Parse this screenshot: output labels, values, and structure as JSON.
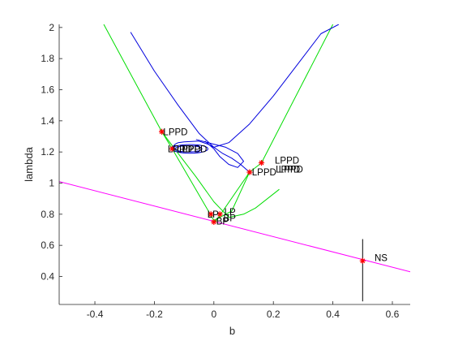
{
  "chart_data": {
    "type": "line",
    "title": "",
    "xlabel": "b",
    "ylabel": "lambda",
    "xlim": [
      -0.52,
      0.66
    ],
    "ylim": [
      0.22,
      2.02
    ],
    "xticks": [
      -0.4,
      -0.2,
      0,
      0.2,
      0.4,
      0.6
    ],
    "xtick_labels": [
      "-0.4",
      "-0.2",
      "0",
      "0.2",
      "0.4",
      "0.6"
    ],
    "yticks": [
      0.4,
      0.6,
      0.8,
      1.0,
      1.2,
      1.4,
      1.6,
      1.8,
      2.0
    ],
    "ytick_labels": [
      "0.4",
      "0.6",
      "0.8",
      "1",
      "1.2",
      "1.4",
      "1.6",
      "1.8",
      "2"
    ],
    "grid": false,
    "colors": {
      "green": "#00dd00",
      "blue": "#0000dd",
      "magenta": "#ff00ff",
      "black": "#000000",
      "marker": "#ff0000",
      "axis": "#262626"
    },
    "series": [
      {
        "color": "#ff00ff",
        "x": [
          -0.52,
          0.66
        ],
        "y": [
          1.01,
          0.43
        ]
      },
      {
        "color": "#00dd00",
        "x": [
          -0.37,
          -0.175,
          -0.14,
          0.0,
          0.005,
          0.12,
          0.16,
          0.4
        ],
        "y": [
          2.02,
          1.33,
          1.22,
          0.76,
          0.75,
          1.07,
          1.13,
          2.02
        ]
      },
      {
        "color": "#00dd00",
        "x": [
          -0.175,
          -0.12,
          -0.06,
          0.0,
          0.05,
          0.1,
          0.14,
          0.22
        ],
        "y": [
          1.33,
          1.19,
          1.04,
          0.88,
          0.78,
          0.8,
          0.84,
          0.96
        ]
      },
      {
        "color": "#00dd00",
        "x": [
          0.0,
          0.06,
          0.12
        ],
        "y": [
          0.76,
          0.82,
          1.07
        ]
      },
      {
        "color": "#0000dd",
        "x": [
          -0.28,
          -0.2,
          -0.12,
          -0.05,
          0.0,
          0.03,
          0.06,
          0.09,
          0.12
        ],
        "y": [
          1.97,
          1.72,
          1.5,
          1.32,
          1.23,
          1.19,
          1.16,
          1.12,
          1.07
        ]
      },
      {
        "color": "#0000dd",
        "x": [
          -0.145,
          -0.13,
          -0.12,
          -0.1,
          -0.05,
          -0.02,
          0.0,
          0.05,
          0.12,
          0.2,
          0.28,
          0.36,
          0.42
        ],
        "y": [
          1.22,
          1.25,
          1.26,
          1.265,
          1.27,
          1.25,
          1.23,
          1.26,
          1.38,
          1.56,
          1.76,
          1.96,
          2.02
        ]
      },
      {
        "color": "#0000dd",
        "x": [
          -0.06,
          0.0,
          0.04,
          0.08,
          0.1,
          0.08,
          0.05,
          0.02,
          0.0,
          -0.03
        ],
        "y": [
          1.28,
          1.25,
          1.23,
          1.19,
          1.14,
          1.1,
          1.12,
          1.17,
          1.22,
          1.27
        ]
      },
      {
        "color": "#000000",
        "x": [
          0.5,
          0.5
        ],
        "y": [
          0.24,
          0.64
        ]
      }
    ],
    "loops": [
      {
        "cx": -0.08,
        "cy": 1.22,
        "rx": 0.06,
        "ry": 0.028,
        "color": "#0000dd"
      },
      {
        "cx": -0.085,
        "cy": 1.22,
        "rx": 0.045,
        "ry": 0.02,
        "color": "#0000dd"
      }
    ],
    "markers": [
      {
        "x": -0.175,
        "y": 1.33
      },
      {
        "x": -0.14,
        "y": 1.22
      },
      {
        "x": 0.12,
        "y": 1.07
      },
      {
        "x": 0.16,
        "y": 1.13
      },
      {
        "x": -0.01,
        "y": 0.8
      },
      {
        "x": 0.02,
        "y": 0.8
      },
      {
        "x": 0.0,
        "y": 0.75
      },
      {
        "x": 0.5,
        "y": 0.5
      }
    ],
    "annotations": [
      {
        "text": "LPPD",
        "x": -0.17,
        "y": 1.33
      },
      {
        "text": "LPPD",
        "x": -0.155,
        "y": 1.22
      },
      {
        "text": "LPPD",
        "x": -0.125,
        "y": 1.22
      },
      {
        "text": "LPPD",
        "x": -0.105,
        "y": 1.22
      },
      {
        "text": "LPPD",
        "x": 0.128,
        "y": 1.07
      },
      {
        "text": "LPPD",
        "x": 0.208,
        "y": 1.09
      },
      {
        "text": "LPPD",
        "x": 0.218,
        "y": 1.09
      },
      {
        "text": "LPPD",
        "x": 0.205,
        "y": 1.145
      },
      {
        "text": "LP",
        "x": -0.022,
        "y": 0.8
      },
      {
        "text": "LP",
        "x": 0.035,
        "y": 0.815
      },
      {
        "text": "BP",
        "x": 0.008,
        "y": 0.755
      },
      {
        "text": "BP",
        "x": 0.032,
        "y": 0.775
      },
      {
        "text": "NS",
        "x": 0.54,
        "y": 0.52
      }
    ]
  }
}
